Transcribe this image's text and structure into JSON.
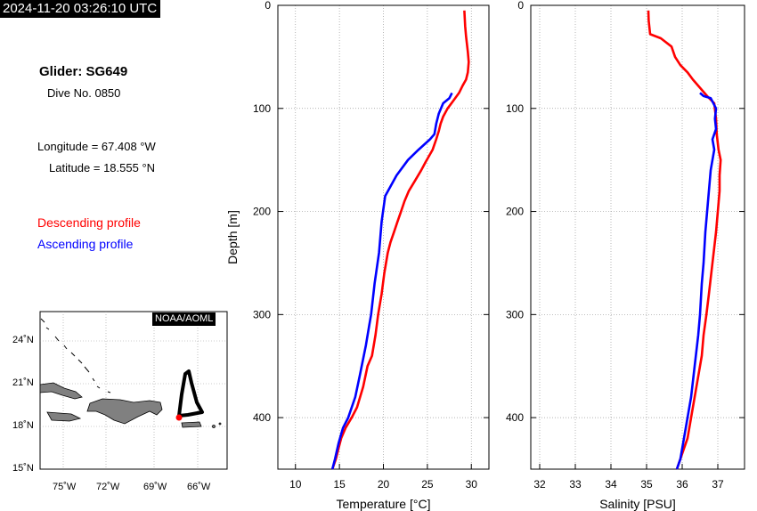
{
  "header": {
    "timestamp": "2024-11-20 03:26:10 UTC"
  },
  "info": {
    "glider": "Glider: SG649",
    "dive": "Dive No. 0850",
    "longitude": "Longitude = 67.408 °W",
    "latitude": "Latitude = 18.555 °N",
    "descending_label": "Descending profile",
    "ascending_label": "Ascending profile"
  },
  "colors": {
    "descending": "#ff0000",
    "ascending": "#0000ff"
  },
  "map": {
    "badge": "NOAA/AOML",
    "lat_ticks": [
      "24˚N",
      "21˚N",
      "18˚N",
      "15˚N"
    ],
    "lon_ticks": [
      "75˚W",
      "72˚W",
      "69˚W",
      "66˚W"
    ]
  },
  "chart_data": [
    {
      "type": "line",
      "xlabel": "Temperature [°C]",
      "ylabel": "Depth [m]",
      "xlim": [
        8,
        32
      ],
      "ylim": [
        450,
        0
      ],
      "xticks": [
        10,
        15,
        20,
        25,
        30
      ],
      "yticks": [
        0,
        100,
        200,
        300,
        400
      ],
      "grid": true,
      "series": [
        {
          "color": "#ff0000",
          "x": [
            29.2,
            29.3,
            29.4,
            29.6,
            29.7,
            29.6,
            29.4,
            29.0,
            28.6,
            28.0,
            27.3,
            26.8,
            26.5,
            26.3,
            26.0,
            25.6,
            24.8,
            24.3,
            23.6,
            22.9,
            22.4,
            22.0,
            21.6,
            21.2,
            20.8,
            20.5,
            20.1,
            19.8,
            19.4,
            19.1,
            18.7,
            18.2,
            17.7,
            17.0,
            16.4,
            15.7,
            15.2,
            14.9,
            14.6,
            14.2
          ],
          "y": [
            5,
            20,
            30,
            45,
            55,
            65,
            72,
            78,
            85,
            92,
            100,
            108,
            115,
            122,
            130,
            140,
            152,
            160,
            170,
            180,
            190,
            200,
            210,
            220,
            230,
            240,
            260,
            280,
            300,
            320,
            340,
            350,
            370,
            390,
            400,
            410,
            420,
            430,
            440,
            450
          ]
        },
        {
          "color": "#0000ff",
          "x": [
            27.8,
            27.5,
            26.8,
            26.3,
            26.0,
            25.8,
            25.3,
            24.0,
            22.8,
            21.5,
            20.2,
            19.8,
            19.5,
            19.0,
            18.6,
            18.4,
            18.0,
            17.3,
            16.8,
            16.0,
            15.4,
            14.9,
            14.5,
            14.2
          ],
          "y": [
            85,
            90,
            95,
            105,
            115,
            125,
            130,
            140,
            150,
            165,
            185,
            210,
            240,
            270,
            300,
            310,
            330,
            360,
            380,
            400,
            410,
            425,
            440,
            450
          ]
        }
      ]
    },
    {
      "type": "line",
      "xlabel": "Salinity [PSU]",
      "ylabel": "",
      "xlim": [
        31.75,
        37.75
      ],
      "ylim": [
        450,
        0
      ],
      "xticks": [
        32,
        33,
        34,
        35,
        36,
        37
      ],
      "yticks": [
        0,
        100,
        200,
        300,
        400
      ],
      "grid": true,
      "series": [
        {
          "color": "#ff0000",
          "x": [
            35.05,
            35.06,
            35.1,
            35.4,
            35.7,
            35.8,
            35.95,
            36.15,
            36.3,
            36.5,
            36.7,
            36.9,
            36.95,
            36.97,
            37.02,
            37.08,
            37.05,
            37.05,
            37.0,
            36.95,
            36.85,
            36.75,
            36.68,
            36.6,
            36.55,
            36.45,
            36.35,
            36.25,
            36.15,
            36.05,
            35.95,
            35.85
          ],
          "y": [
            5,
            15,
            28,
            32,
            40,
            50,
            58,
            65,
            72,
            80,
            88,
            95,
            110,
            125,
            140,
            150,
            165,
            180,
            200,
            220,
            250,
            280,
            300,
            320,
            340,
            360,
            380,
            400,
            420,
            430,
            440,
            450
          ]
        },
        {
          "color": "#0000ff",
          "x": [
            36.5,
            36.6,
            36.8,
            36.95,
            36.92,
            36.95,
            36.85,
            36.9,
            36.8,
            36.75,
            36.7,
            36.65,
            36.6,
            36.55,
            36.5,
            36.45,
            36.35,
            36.25,
            36.15,
            36.05,
            35.95,
            35.85
          ],
          "y": [
            85,
            88,
            90,
            100,
            110,
            120,
            130,
            140,
            160,
            180,
            200,
            220,
            250,
            270,
            300,
            320,
            350,
            380,
            400,
            420,
            440,
            450
          ]
        }
      ]
    }
  ]
}
